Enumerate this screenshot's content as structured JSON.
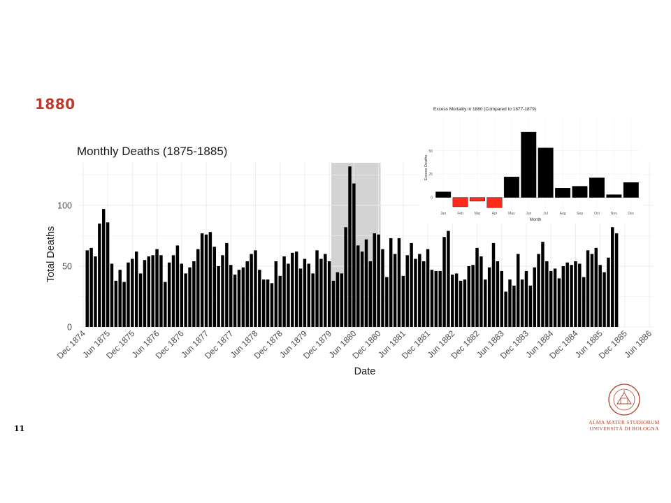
{
  "slide": {
    "title": "1880",
    "page_number": "11"
  },
  "logo": {
    "lines": [
      "ALMA MATER STUDIORUM",
      "UNIVERSITÀ DI BOLOGNA"
    ],
    "seal_text": "ALMA MATER STUDIORUM A.D. 1088"
  },
  "colors": {
    "bar": "#000000",
    "highlight": "#d3d3d3",
    "negative": "#ff2a1a",
    "title": "#c0392b",
    "grid": "#ebebeb",
    "logo": "#b5412e"
  },
  "chart_data": [
    {
      "type": "bar",
      "title": "Monthly Deaths (1875-1885)",
      "xlabel": "Date",
      "ylabel": "Total Deaths",
      "ylim": [
        0,
        135
      ],
      "yticks": [
        0,
        50,
        100
      ],
      "x_range": [
        "1874-11",
        "1886-07"
      ],
      "xticks": [
        {
          "date": "1874-12",
          "label": "Dec 1874"
        },
        {
          "date": "1875-06",
          "label": "Jun 1875"
        },
        {
          "date": "1875-12",
          "label": "Dec 1875"
        },
        {
          "date": "1876-06",
          "label": "Jun 1876"
        },
        {
          "date": "1876-12",
          "label": "Dec 1876"
        },
        {
          "date": "1877-06",
          "label": "Jun 1877"
        },
        {
          "date": "1877-12",
          "label": "Dec 1877"
        },
        {
          "date": "1878-06",
          "label": "Jun 1878"
        },
        {
          "date": "1878-12",
          "label": "Dec 1878"
        },
        {
          "date": "1879-06",
          "label": "Jun 1879"
        },
        {
          "date": "1879-12",
          "label": "Dec 1879"
        },
        {
          "date": "1880-06",
          "label": "Jun 1880"
        },
        {
          "date": "1880-12",
          "label": "Dec 1880"
        },
        {
          "date": "1881-06",
          "label": "Jun 1881"
        },
        {
          "date": "1881-12",
          "label": "Dec 1881"
        },
        {
          "date": "1882-06",
          "label": "Jun 1882"
        },
        {
          "date": "1882-12",
          "label": "Dec 1882"
        },
        {
          "date": "1883-06",
          "label": "Jun 1883"
        },
        {
          "date": "1883-12",
          "label": "Dec 1883"
        },
        {
          "date": "1884-06",
          "label": "Jun 1884"
        },
        {
          "date": "1884-12",
          "label": "Dec 1884"
        },
        {
          "date": "1885-06",
          "label": "Jun 1885"
        },
        {
          "date": "1885-12",
          "label": "Dec 1885"
        },
        {
          "date": "1886-06",
          "label": "Jun 1886"
        }
      ],
      "highlight": [
        "1880-01",
        "1880-12"
      ],
      "grid": true,
      "x_start": "1875-01",
      "values": [
        63,
        65,
        58,
        85,
        97,
        86,
        52,
        38,
        47,
        37,
        53,
        56,
        62,
        44,
        55,
        58,
        59,
        64,
        59,
        37,
        53,
        59,
        67,
        52,
        44,
        49,
        54,
        64,
        77,
        76,
        78,
        66,
        50,
        59,
        69,
        51,
        43,
        47,
        49,
        54,
        60,
        63,
        47,
        39,
        39,
        36,
        54,
        42,
        58,
        52,
        61,
        62,
        48,
        56,
        52,
        44,
        63,
        56,
        60,
        54,
        38,
        45,
        44,
        82,
        132,
        118,
        67,
        62,
        72,
        54,
        77,
        76,
        64,
        41,
        73,
        60,
        73,
        42,
        59,
        69,
        56,
        60,
        54,
        64,
        47,
        46,
        46,
        74,
        79,
        43,
        44,
        38,
        39,
        50,
        51,
        65,
        58,
        39,
        49,
        69,
        54,
        46,
        29,
        39,
        34,
        60,
        39,
        46,
        34,
        49,
        60,
        70,
        54,
        46,
        48,
        40,
        50,
        53,
        51,
        54,
        52,
        41,
        63,
        60,
        65,
        51,
        45,
        57,
        82,
        77
      ]
    },
    {
      "type": "bar",
      "title": "Excess Mortality in 1880 (Compared to 1877-1879)",
      "xlabel": "Month",
      "ylabel": "Excess Deaths",
      "ylim": [
        -13,
        88
      ],
      "yticks": [
        0,
        25,
        50
      ],
      "categories": [
        "Jan",
        "Feb",
        "Mar",
        "Apr",
        "May",
        "Jun",
        "Jul",
        "Aug",
        "Sep",
        "Oct",
        "Nov",
        "Dec"
      ],
      "values": [
        6,
        -10,
        -4,
        -11,
        22,
        70,
        53,
        10,
        12,
        21,
        3,
        16
      ],
      "grid": true
    }
  ]
}
